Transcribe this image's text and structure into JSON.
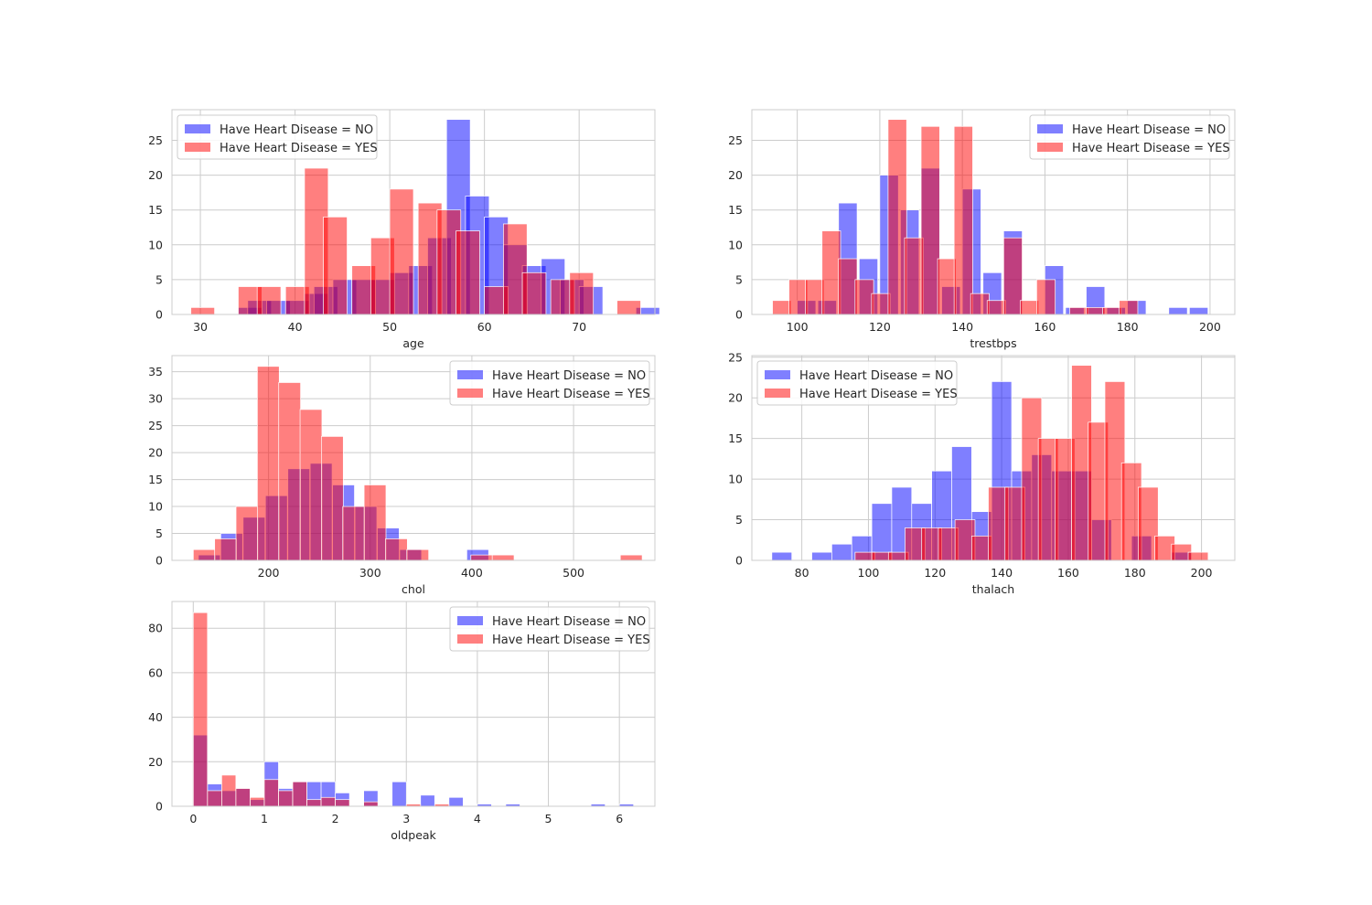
{
  "colors": {
    "no": "#0000ff",
    "yes": "#ff0000",
    "grid": "#cccccc",
    "background": "#ffffff"
  },
  "chart_data": [
    {
      "type": "histogram",
      "xlabel": "age",
      "grid": true,
      "legend_loc": "upper-left",
      "series": [
        {
          "name": "Have Heart Disease = NO",
          "color": "#0000ff",
          "alpha": 0.5,
          "bins": [
            [
              34,
              1
            ],
            [
              35,
              2
            ],
            [
              37,
              2
            ],
            [
              39,
              2
            ],
            [
              41,
              3
            ],
            [
              42,
              4
            ],
            [
              44,
              5
            ],
            [
              46,
              5
            ],
            [
              48,
              5
            ],
            [
              50,
              6
            ],
            [
              52,
              7
            ],
            [
              54,
              11
            ],
            [
              56,
              28
            ],
            [
              58,
              17
            ],
            [
              60,
              14
            ],
            [
              62,
              10
            ],
            [
              64,
              7
            ],
            [
              66,
              8
            ],
            [
              68,
              5
            ],
            [
              70,
              4
            ],
            [
              76,
              1
            ]
          ]
        },
        {
          "name": "Have Heart Disease = YES",
          "color": "#ff0000",
          "alpha": 0.5,
          "bins": [
            [
              29,
              1
            ],
            [
              34,
              4
            ],
            [
              36,
              4
            ],
            [
              39,
              4
            ],
            [
              41,
              21
            ],
            [
              43,
              14
            ],
            [
              46,
              7
            ],
            [
              48,
              11
            ],
            [
              50,
              18
            ],
            [
              53,
              16
            ],
            [
              55,
              15
            ],
            [
              57,
              12
            ],
            [
              60,
              4
            ],
            [
              62,
              13
            ],
            [
              64,
              6
            ],
            [
              67,
              5
            ],
            [
              69,
              6
            ],
            [
              74,
              2
            ]
          ]
        }
      ],
      "xlim": [
        27,
        78
      ],
      "ylim": [
        0,
        29.4
      ],
      "xticks": [
        30,
        40,
        50,
        60,
        70
      ],
      "yticks": [
        0,
        5,
        10,
        15,
        20,
        25
      ]
    },
    {
      "type": "histogram",
      "xlabel": "trestbps",
      "grid": true,
      "legend_loc": "upper-right",
      "series": [
        {
          "name": "Have Heart Disease = NO",
          "color": "#0000ff",
          "alpha": 0.5,
          "bins": [
            [
              100,
              2
            ],
            [
              105,
              2
            ],
            [
              110,
              16
            ],
            [
              115,
              8
            ],
            [
              120,
              20
            ],
            [
              125,
              15
            ],
            [
              130,
              21
            ],
            [
              135,
              4
            ],
            [
              140,
              18
            ],
            [
              145,
              6
            ],
            [
              150,
              12
            ],
            [
              155,
              0
            ],
            [
              160,
              7
            ],
            [
              165,
              1
            ],
            [
              170,
              4
            ],
            [
              175,
              1
            ],
            [
              180,
              2
            ],
            [
              190,
              1
            ],
            [
              195,
              1
            ]
          ]
        },
        {
          "name": "Have Heart Disease = YES",
          "color": "#ff0000",
          "alpha": 0.5,
          "bins": [
            [
              94,
              2
            ],
            [
              98,
              5
            ],
            [
              102,
              5
            ],
            [
              106,
              12
            ],
            [
              110,
              8
            ],
            [
              114,
              5
            ],
            [
              118,
              3
            ],
            [
              122,
              28
            ],
            [
              126,
              11
            ],
            [
              130,
              27
            ],
            [
              134,
              8
            ],
            [
              138,
              27
            ],
            [
              142,
              3
            ],
            [
              146,
              2
            ],
            [
              150,
              11
            ],
            [
              154,
              2
            ],
            [
              158,
              5
            ],
            [
              162,
              0
            ],
            [
              166,
              1
            ],
            [
              170,
              1
            ],
            [
              174,
              1
            ],
            [
              178,
              2
            ]
          ]
        }
      ],
      "xlim": [
        89,
        206
      ],
      "ylim": [
        0,
        29.4
      ],
      "xticks": [
        100,
        120,
        140,
        160,
        180,
        200
      ],
      "yticks": [
        0,
        5,
        10,
        15,
        20,
        25
      ]
    },
    {
      "type": "histogram",
      "xlabel": "chol",
      "grid": true,
      "legend_loc": "upper-right",
      "series": [
        {
          "name": "Have Heart Disease = NO",
          "color": "#0000ff",
          "alpha": 0.5,
          "bins": [
            [
              131,
              1
            ],
            [
              153,
              5
            ],
            [
              175,
              8
            ],
            [
              197,
              12
            ],
            [
              219,
              17
            ],
            [
              241,
              18
            ],
            [
              263,
              14
            ],
            [
              285,
              10
            ],
            [
              307,
              6
            ],
            [
              329,
              2
            ],
            [
              395,
              2
            ]
          ]
        },
        {
          "name": "Have Heart Disease = YES",
          "color": "#ff0000",
          "alpha": 0.5,
          "bins": [
            [
              126,
              2
            ],
            [
              147,
              4
            ],
            [
              168,
              10
            ],
            [
              189,
              36
            ],
            [
              210,
              33
            ],
            [
              231,
              28
            ],
            [
              252,
              23
            ],
            [
              273,
              10
            ],
            [
              294,
              14
            ],
            [
              315,
              4
            ],
            [
              336,
              2
            ],
            [
              399,
              1
            ],
            [
              420,
              1
            ],
            [
              546,
              1
            ]
          ]
        }
      ],
      "xlim": [
        105,
        580
      ],
      "ylim": [
        0,
        38
      ],
      "xticks": [
        200,
        300,
        400,
        500
      ],
      "yticks": [
        0,
        5,
        10,
        15,
        20,
        25,
        30,
        35
      ]
    },
    {
      "type": "histogram",
      "xlabel": "thalach",
      "grid": true,
      "legend_loc": "upper-left",
      "series": [
        {
          "name": "Have Heart Disease = NO",
          "color": "#0000ff",
          "alpha": 0.5,
          "bins": [
            [
              71,
              1
            ],
            [
              83,
              1
            ],
            [
              89,
              2
            ],
            [
              95,
              3
            ],
            [
              101,
              7
            ],
            [
              107,
              9
            ],
            [
              113,
              7
            ],
            [
              119,
              11
            ],
            [
              125,
              14
            ],
            [
              131,
              6
            ],
            [
              137,
              22
            ],
            [
              143,
              11
            ],
            [
              149,
              13
            ],
            [
              155,
              11
            ],
            [
              161,
              11
            ],
            [
              167,
              5
            ],
            [
              173,
              0
            ],
            [
              179,
              3
            ],
            [
              191,
              1
            ]
          ]
        },
        {
          "name": "Have Heart Disease = YES",
          "color": "#ff0000",
          "alpha": 0.5,
          "bins": [
            [
              96,
              1
            ],
            [
              101,
              1
            ],
            [
              106,
              1
            ],
            [
              111,
              4
            ],
            [
              116,
              4
            ],
            [
              121,
              4
            ],
            [
              126,
              5
            ],
            [
              131,
              3
            ],
            [
              136,
              9
            ],
            [
              141,
              9
            ],
            [
              146,
              20
            ],
            [
              151,
              15
            ],
            [
              156,
              15
            ],
            [
              161,
              24
            ],
            [
              166,
              17
            ],
            [
              171,
              22
            ],
            [
              176,
              12
            ],
            [
              181,
              9
            ],
            [
              186,
              3
            ],
            [
              191,
              2
            ],
            [
              196,
              1
            ]
          ]
        }
      ],
      "xlim": [
        65,
        210
      ],
      "ylim": [
        0,
        25.2
      ],
      "xticks": [
        80,
        100,
        120,
        140,
        160,
        180,
        200
      ],
      "yticks": [
        0,
        5,
        10,
        15,
        20,
        25
      ]
    },
    {
      "type": "histogram",
      "xlabel": "oldpeak",
      "grid": true,
      "legend_loc": "upper-right",
      "series": [
        {
          "name": "Have Heart Disease = NO",
          "color": "#0000ff",
          "alpha": 0.5,
          "bins": [
            [
              0,
              32
            ],
            [
              0.2,
              10
            ],
            [
              0.4,
              7
            ],
            [
              0.6,
              8
            ],
            [
              0.8,
              3
            ],
            [
              1.0,
              20
            ],
            [
              1.2,
              8
            ],
            [
              1.4,
              11
            ],
            [
              1.6,
              11
            ],
            [
              1.8,
              11
            ],
            [
              2.0,
              6
            ],
            [
              2.4,
              7
            ],
            [
              2.8,
              11
            ],
            [
              3.2,
              5
            ],
            [
              3.6,
              4
            ],
            [
              4.0,
              1
            ],
            [
              4.4,
              1
            ],
            [
              5.6,
              1
            ],
            [
              6.0,
              1
            ]
          ]
        },
        {
          "name": "Have Heart Disease = YES",
          "color": "#ff0000",
          "alpha": 0.5,
          "bins": [
            [
              0,
              87
            ],
            [
              0.2,
              7
            ],
            [
              0.4,
              14
            ],
            [
              0.6,
              8
            ],
            [
              0.8,
              4
            ],
            [
              1.0,
              12
            ],
            [
              1.2,
              7
            ],
            [
              1.4,
              11
            ],
            [
              1.6,
              3
            ],
            [
              1.8,
              4
            ],
            [
              2.0,
              3
            ],
            [
              2.4,
              2
            ],
            [
              3.0,
              1
            ],
            [
              3.4,
              1
            ]
          ]
        }
      ],
      "bin_width": 0.2,
      "xlim": [
        -0.3,
        6.5
      ],
      "ylim": [
        0,
        92
      ],
      "xticks": [
        0,
        1,
        2,
        3,
        4,
        5,
        6
      ],
      "yticks": [
        0,
        20,
        40,
        60,
        80
      ]
    }
  ]
}
